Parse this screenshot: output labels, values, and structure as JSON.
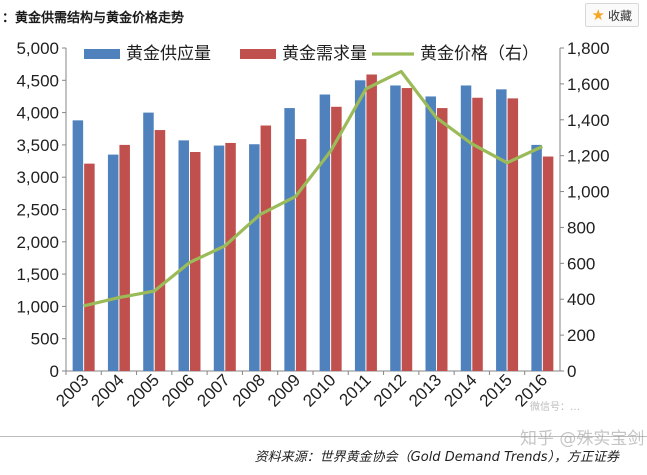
{
  "header": {
    "title": "：黄金供需结构与黄金价格走势",
    "favorite_label": "收藏",
    "favorite_icon": "star-icon"
  },
  "chart_data": {
    "type": "bar",
    "categories": [
      "2003",
      "2004",
      "2005",
      "2006",
      "2007",
      "2008",
      "2009",
      "2010",
      "2011",
      "2012",
      "2013",
      "2014",
      "2015",
      "2016"
    ],
    "series": [
      {
        "name": "黄金供应量",
        "type": "bar",
        "axis": "left",
        "color": "#4f81bd",
        "values": [
          3880,
          3350,
          4000,
          3570,
          3490,
          3510,
          4070,
          4280,
          4500,
          4420,
          4250,
          4420,
          4360,
          3500
        ]
      },
      {
        "name": "黄金需求量",
        "type": "bar",
        "axis": "left",
        "color": "#c0504d",
        "values": [
          3210,
          3500,
          3730,
          3390,
          3530,
          3800,
          3590,
          4090,
          4590,
          4380,
          4070,
          4230,
          4220,
          3320
        ]
      },
      {
        "name": "黄金价格（右）",
        "type": "line",
        "axis": "right",
        "color": "#9bbb59",
        "values": [
          363,
          409,
          445,
          604,
          697,
          872,
          972,
          1225,
          1572,
          1669,
          1411,
          1266,
          1160,
          1251
        ]
      }
    ],
    "y_left": {
      "min": 0,
      "max": 5000,
      "ticks": [
        "0",
        "500",
        "1,000",
        "1,500",
        "2,000",
        "2,500",
        "3,000",
        "3,500",
        "4,000",
        "4,500",
        "5,000"
      ]
    },
    "y_right": {
      "min": 0,
      "max": 1800,
      "ticks": [
        "0",
        "200",
        "400",
        "600",
        "800",
        "1,000",
        "1,200",
        "1,400",
        "1,600",
        "1,800"
      ]
    },
    "grid": false,
    "legend": "top"
  },
  "footer": {
    "source": "资料来源：世界黄金协会（Gold Demand Trends），方正证券",
    "watermark_small": "微信号：…",
    "watermark_main": "知乎 @殊实宝剑"
  }
}
